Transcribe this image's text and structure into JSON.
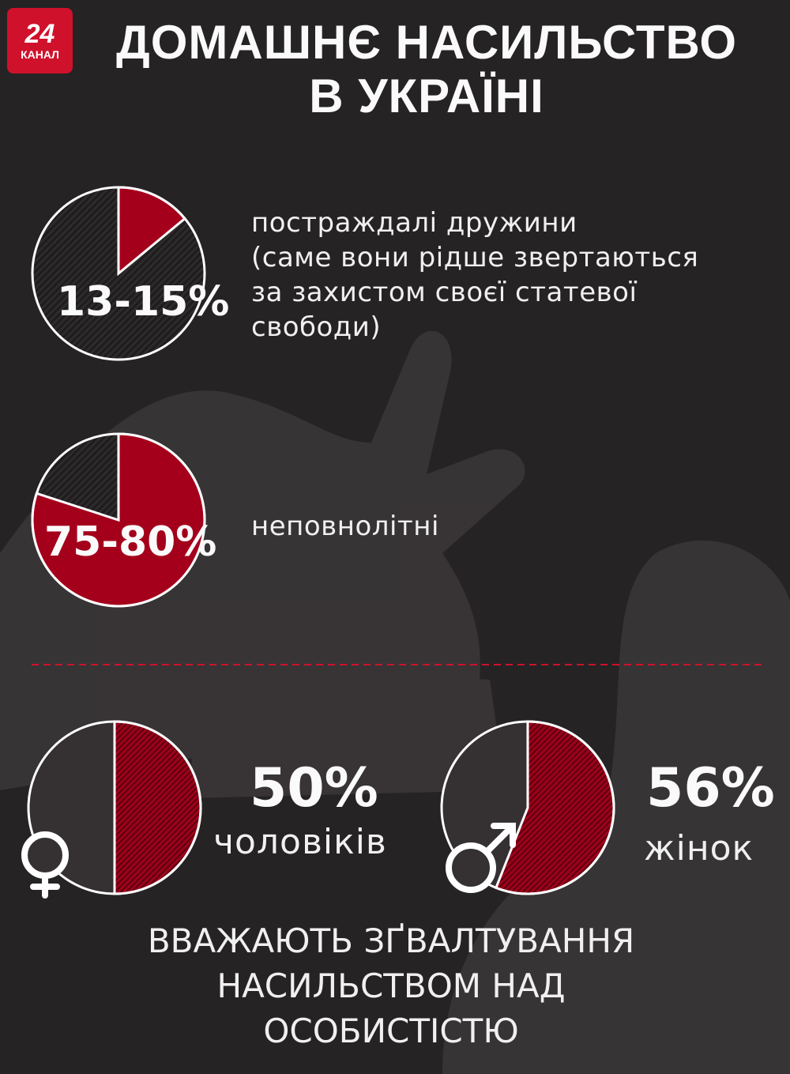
{
  "logo": {
    "number": "24",
    "text": "КАНАЛ"
  },
  "title": [
    "ДОМАШНЄ НАСИЛЬСТВО",
    "В УКРАЇНІ"
  ],
  "colors": {
    "background": "#262324",
    "accent": "#a4001c",
    "divider": "#d0112b"
  },
  "chart_data": [
    {
      "type": "pie",
      "label": "13-15%",
      "value_percent": 14,
      "description": [
        "постраждалі дружини",
        "(саме вони рідше звертаються",
        "за захистом своєї статевої",
        "свободи)"
      ]
    },
    {
      "type": "pie",
      "label": "75-80%",
      "value_percent": 80,
      "description": [
        "неповнолітні"
      ]
    },
    {
      "type": "pie",
      "label": "50%",
      "value_percent": 50,
      "group": "чоловіків",
      "icon": "female-symbol-icon"
    },
    {
      "type": "pie",
      "label": "56%",
      "value_percent": 56,
      "group": "жінок",
      "icon": "male-symbol-icon"
    }
  ],
  "footer": [
    "ВВАЖАЮТЬ ЗҐВАЛТУВАННЯ",
    "НАСИЛЬСТВОМ НАД",
    "ОСОБИСТІСТЮ"
  ]
}
